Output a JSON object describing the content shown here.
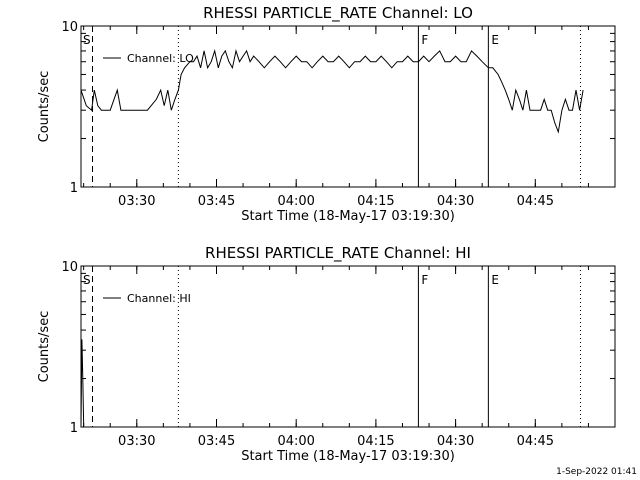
{
  "footer_timestamp": "1-Sep-2022 01:41",
  "chart_data": [
    {
      "type": "line",
      "title": "RHESSI PARTICLE_RATE Channel: LO",
      "xlabel": "Start Time (18-May-17 03:19:30)",
      "ylabel": "Counts/sec",
      "y_scale": "log",
      "ylim": [
        1,
        10
      ],
      "xlim": [
        "03:19:30",
        "05:00:00"
      ],
      "y_ticks": [
        "1",
        "10"
      ],
      "x_ticks": [
        "03:30",
        "03:45",
        "04:00",
        "04:15",
        "04:30",
        "04:45"
      ],
      "legend": {
        "entries": [
          "Channel: LO"
        ],
        "position": "top-left"
      },
      "markers": [
        {
          "time": "03:21:40",
          "label": "S",
          "style": "dashed"
        },
        {
          "time": "03:37:50",
          "label": "",
          "style": "dotted"
        },
        {
          "time": "04:23:00",
          "label": "F",
          "style": "solid"
        },
        {
          "time": "04:36:10",
          "label": "E",
          "style": "solid"
        },
        {
          "time": "04:53:30",
          "label": "",
          "style": "dotted"
        }
      ],
      "series": [
        {
          "x": [
            "03:19:30",
            "03:20:30",
            "03:21:30",
            "03:22:00",
            "03:22:40",
            "03:23:20",
            "03:25:00",
            "03:26:20",
            "03:27:00",
            "03:27:40",
            "03:32:00",
            "03:33:40",
            "03:34:30",
            "03:35:10",
            "03:35:50",
            "03:36:30",
            "03:37:10",
            "03:37:50",
            "03:38:20",
            "03:39:00",
            "03:40:00",
            "03:40:40",
            "03:41:20",
            "03:42:00",
            "03:42:40",
            "03:43:20",
            "03:44:00",
            "03:44:40",
            "03:45:20",
            "03:46:00",
            "03:46:40",
            "03:47:20",
            "03:48:00",
            "03:48:40",
            "03:49:20",
            "03:50:00",
            "03:50:40",
            "03:51:20",
            "03:52:00",
            "03:53:00",
            "03:54:00",
            "03:55:00",
            "03:56:00",
            "03:57:00",
            "03:58:00",
            "03:59:00",
            "04:00:00",
            "04:01:00",
            "04:02:00",
            "04:03:00",
            "04:04:00",
            "04:05:00",
            "04:06:00",
            "04:07:00",
            "04:08:00",
            "04:09:00",
            "04:10:00",
            "04:11:00",
            "04:12:00",
            "04:13:00",
            "04:14:00",
            "04:15:00",
            "04:16:00",
            "04:17:00",
            "04:18:00",
            "04:19:00",
            "04:20:00",
            "04:21:00",
            "04:22:00",
            "04:23:00",
            "04:24:00",
            "04:25:00",
            "04:26:00",
            "04:27:00",
            "04:28:00",
            "04:29:00",
            "04:30:00",
            "04:31:00",
            "04:32:00",
            "04:33:00",
            "04:34:00",
            "04:35:00",
            "04:36:10",
            "04:37:00",
            "04:38:00",
            "04:38:40",
            "04:39:20",
            "04:40:00",
            "04:40:40",
            "04:41:20",
            "04:42:00",
            "04:42:40",
            "04:43:20",
            "04:44:00",
            "04:44:40",
            "04:45:20",
            "04:46:00",
            "04:46:40",
            "04:47:20",
            "04:48:00",
            "04:48:40",
            "04:49:20",
            "04:50:00",
            "04:50:40",
            "04:51:20",
            "04:52:00",
            "04:52:40",
            "04:53:20",
            "04:54:00"
          ],
          "y": [
            4.0,
            3.2,
            3.0,
            4.0,
            3.2,
            3.0,
            3.0,
            4.0,
            3.0,
            3.0,
            3.0,
            3.5,
            4.0,
            3.2,
            4.0,
            3.0,
            3.5,
            4.0,
            5.0,
            5.5,
            6.0,
            6.0,
            6.5,
            5.5,
            7.0,
            5.5,
            6.0,
            7.0,
            5.5,
            6.5,
            7.0,
            6.0,
            5.5,
            7.0,
            6.0,
            6.5,
            7.0,
            6.0,
            6.5,
            6.0,
            5.5,
            6.0,
            6.5,
            6.0,
            5.5,
            6.0,
            6.5,
            6.0,
            6.0,
            5.5,
            6.0,
            6.5,
            6.0,
            6.0,
            6.5,
            6.0,
            5.5,
            6.0,
            6.0,
            6.5,
            6.0,
            6.0,
            6.5,
            6.0,
            5.5,
            6.0,
            6.0,
            6.5,
            6.0,
            6.0,
            6.5,
            6.0,
            6.5,
            7.0,
            6.0,
            6.0,
            6.5,
            6.0,
            6.0,
            7.0,
            6.5,
            6.0,
            5.5,
            5.5,
            5.0,
            4.5,
            4.0,
            3.5,
            3.0,
            4.0,
            3.5,
            3.0,
            4.0,
            3.0,
            3.0,
            3.0,
            3.0,
            3.5,
            3.0,
            3.0,
            2.5,
            2.2,
            3.0,
            3.5,
            3.0,
            3.0,
            4.0,
            3.0,
            4.0
          ]
        }
      ]
    },
    {
      "type": "line",
      "title": "RHESSI PARTICLE_RATE Channel: HI",
      "xlabel": "Start Time (18-May-17 03:19:30)",
      "ylabel": "Counts/sec",
      "y_scale": "log",
      "ylim": [
        1,
        10
      ],
      "xlim": [
        "03:19:30",
        "05:00:00"
      ],
      "y_ticks": [
        "1",
        "10"
      ],
      "x_ticks": [
        "03:30",
        "03:45",
        "04:00",
        "04:15",
        "04:30",
        "04:45"
      ],
      "legend": {
        "entries": [
          "Channel: HI"
        ],
        "position": "top-left"
      },
      "markers": [
        {
          "time": "03:21:40",
          "label": "S",
          "style": "dashed"
        },
        {
          "time": "03:37:50",
          "label": "",
          "style": "dotted"
        },
        {
          "time": "04:23:00",
          "label": "F",
          "style": "solid"
        },
        {
          "time": "04:36:10",
          "label": "E",
          "style": "solid"
        },
        {
          "time": "04:53:30",
          "label": "",
          "style": "dotted"
        }
      ],
      "series": [
        {
          "x": [
            "03:19:30",
            "03:19:40",
            "03:19:50",
            "03:20:00",
            "03:20:10"
          ],
          "y": [
            1.0,
            3.5,
            2.0,
            1.0,
            1.0
          ]
        }
      ]
    }
  ]
}
